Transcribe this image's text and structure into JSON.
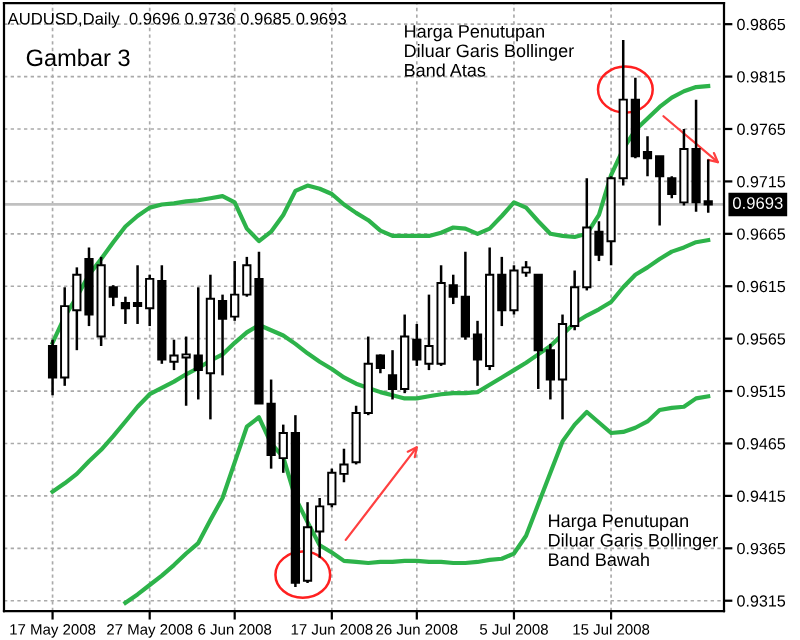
{
  "chart_data": {
    "type": "candlestick",
    "title": "AUDUSD,Daily  0.9696 0.9736 0.9685 0.9693",
    "subtitle": "Gambar 3",
    "annotations": [
      "Harga Penutupan\nDiluar Garis Bollinger\nBand Atas",
      "Harga Penutupan\nDiluar Garis Bollinger\nBand Bawah"
    ],
    "categories": [
      "17 May 2008",
      null,
      null,
      null,
      null,
      null,
      null,
      null,
      "27 May 2008",
      null,
      null,
      null,
      null,
      null,
      null,
      "6 Jun 2008",
      null,
      null,
      null,
      null,
      null,
      null,
      null,
      "17 Jun 2008",
      null,
      null,
      null,
      null,
      null,
      null,
      "26 Jun 2008",
      null,
      null,
      null,
      null,
      null,
      null,
      null,
      "5 Jul 2008",
      null,
      null,
      null,
      null,
      null,
      null,
      null,
      "15 Jul 2008",
      null,
      null,
      null,
      null,
      null,
      null,
      null,
      null
    ],
    "ohlc": [
      [
        0.9558,
        0.9564,
        0.9511,
        0.9528
      ],
      [
        0.9528,
        0.9614,
        0.952,
        0.9596
      ],
      [
        0.9592,
        0.9633,
        0.9554,
        0.9626
      ],
      [
        0.9641,
        0.9652,
        0.9577,
        0.9588
      ],
      [
        0.9567,
        0.9643,
        0.9558,
        0.9635
      ],
      [
        0.9614,
        0.9616,
        0.9596,
        0.9605
      ],
      [
        0.9599,
        0.9605,
        0.9579,
        0.9594
      ],
      [
        0.9599,
        0.9635,
        0.9579,
        0.9596
      ],
      [
        0.9594,
        0.9626,
        0.9577,
        0.9622
      ],
      [
        0.962,
        0.9635,
        0.9541,
        0.9545
      ],
      [
        0.9543,
        0.9564,
        0.9535,
        0.9549
      ],
      [
        0.9547,
        0.9567,
        0.9501,
        0.955
      ],
      [
        0.9549,
        0.9614,
        0.9507,
        0.9535
      ],
      [
        0.9532,
        0.9626,
        0.9488,
        0.9603
      ],
      [
        0.9601,
        0.9607,
        0.953,
        0.9584
      ],
      [
        0.9586,
        0.9639,
        0.9582,
        0.9607
      ],
      [
        0.9607,
        0.9643,
        0.9605,
        0.9635
      ],
      [
        0.9622,
        0.9648,
        0.9503,
        0.9503
      ],
      [
        0.9503,
        0.9526,
        0.9441,
        0.9454
      ],
      [
        0.9451,
        0.9483,
        0.9437,
        0.9475
      ],
      [
        0.9475,
        0.9492,
        0.9328,
        0.9332
      ],
      [
        0.9334,
        0.9409,
        0.9332,
        0.9385
      ],
      [
        0.9381,
        0.9413,
        0.9356,
        0.9405
      ],
      [
        0.9407,
        0.9441,
        0.9404,
        0.9437
      ],
      [
        0.9436,
        0.946,
        0.9428,
        0.9445
      ],
      [
        0.9447,
        0.9501,
        0.9445,
        0.9494
      ],
      [
        0.9494,
        0.9567,
        0.9492,
        0.9541
      ],
      [
        0.9549,
        0.955,
        0.9532,
        0.9537
      ],
      [
        0.953,
        0.9554,
        0.9507,
        0.9517
      ],
      [
        0.9517,
        0.9588,
        0.9513,
        0.9567
      ],
      [
        0.9564,
        0.9579,
        0.9539,
        0.9545
      ],
      [
        0.9541,
        0.9607,
        0.9535,
        0.9558
      ],
      [
        0.9541,
        0.9635,
        0.9539,
        0.9618
      ],
      [
        0.9616,
        0.9626,
        0.9598,
        0.9605
      ],
      [
        0.9605,
        0.9648,
        0.9564,
        0.9567
      ],
      [
        0.9569,
        0.9582,
        0.952,
        0.9545
      ],
      [
        0.9539,
        0.9652,
        0.9535,
        0.9626
      ],
      [
        0.9626,
        0.9643,
        0.9577,
        0.9592
      ],
      [
        0.9592,
        0.9635,
        0.9588,
        0.963
      ],
      [
        0.9628,
        0.9639,
        0.9624,
        0.9633
      ],
      [
        0.9626,
        0.9626,
        0.9517,
        0.9554
      ],
      [
        0.9554,
        0.956,
        0.9507,
        0.9526
      ],
      [
        0.9526,
        0.9588,
        0.9488,
        0.9579
      ],
      [
        0.9577,
        0.963,
        0.9573,
        0.9614
      ],
      [
        0.9614,
        0.9718,
        0.9611,
        0.9671
      ],
      [
        0.9667,
        0.9677,
        0.9639,
        0.9645
      ],
      [
        0.9658,
        0.972,
        0.9635,
        0.9718
      ],
      [
        0.9718,
        0.985,
        0.9711,
        0.9793
      ],
      [
        0.9793,
        0.9814,
        0.9737,
        0.9739
      ],
      [
        0.9743,
        0.9758,
        0.972,
        0.9737
      ],
      [
        0.9739,
        0.9739,
        0.9673,
        0.972
      ],
      [
        0.9718,
        0.972,
        0.9699,
        0.9703
      ],
      [
        0.9695,
        0.9765,
        0.9692,
        0.9746
      ],
      [
        0.9746,
        0.9793,
        0.9686,
        0.9695
      ],
      [
        0.9696,
        0.9736,
        0.9685,
        0.9693
      ]
    ],
    "series": [
      {
        "type": "line",
        "color": "#2db34a",
        "values": [
          0.9561,
          0.9586,
          0.9605,
          0.9626,
          0.9641,
          0.9657,
          0.9672,
          0.9682,
          0.969,
          0.9693,
          0.9694,
          0.9696,
          0.9697,
          0.9699,
          0.9701,
          0.9695,
          0.967,
          0.9658,
          0.9667,
          0.9683,
          0.9706,
          0.9711,
          0.9708,
          0.9703,
          0.9693,
          0.9685,
          0.9678,
          0.9668,
          0.9663,
          0.9663,
          0.9663,
          0.9663,
          0.9666,
          0.9671,
          0.967,
          0.9665,
          0.967,
          0.9682,
          0.9695,
          0.969,
          0.9677,
          0.9665,
          0.9663,
          0.9662,
          0.9665,
          0.9683,
          0.9721,
          0.9746,
          0.9764,
          0.9775,
          0.9786,
          0.9795,
          0.9801,
          0.9805,
          0.9806
        ]
      },
      {
        "type": "line",
        "color": "#2db34a",
        "values": [
          0.9419,
          0.9427,
          0.9436,
          0.9448,
          0.9459,
          0.9472,
          0.9486,
          0.95,
          0.9512,
          0.9518,
          0.9524,
          0.9531,
          0.9537,
          0.9544,
          0.955,
          0.9561,
          0.9571,
          0.9578,
          0.9573,
          0.9568,
          0.956,
          0.9551,
          0.9543,
          0.9536,
          0.9528,
          0.9522,
          0.9518,
          0.9514,
          0.9511,
          0.9508,
          0.9508,
          0.951,
          0.9512,
          0.9513,
          0.9513,
          0.9514,
          0.9521,
          0.9528,
          0.9535,
          0.9542,
          0.955,
          0.9558,
          0.9569,
          0.958,
          0.9587,
          0.9593,
          0.96,
          0.9614,
          0.9626,
          0.9633,
          0.9641,
          0.9648,
          0.9652,
          0.9657,
          0.9659
        ]
      },
      {
        "type": "line",
        "color": "#2db34a",
        "values": [
          null,
          null,
          null,
          null,
          null,
          null,
          0.9313,
          0.9321,
          0.933,
          0.9339,
          0.9349,
          0.936,
          0.937,
          0.9392,
          0.9413,
          0.9447,
          0.9481,
          0.949,
          0.9465,
          0.9452,
          0.9413,
          0.939,
          0.9368,
          0.9361,
          0.9353,
          0.9352,
          0.9351,
          0.9352,
          0.9352,
          0.9353,
          0.9353,
          0.9352,
          0.9352,
          0.9351,
          0.9351,
          0.9352,
          0.9354,
          0.9355,
          0.936,
          0.9377,
          0.9407,
          0.9437,
          0.9467,
          0.9483,
          0.9495,
          0.9485,
          0.9475,
          0.9476,
          0.948,
          0.9486,
          0.9497,
          0.9499,
          0.95,
          0.9508,
          0.951
        ]
      }
    ],
    "ylim": [
      0.9305,
      0.9885
    ],
    "yticks": [
      {
        "value": 0.9315,
        "label": "0.9315"
      },
      {
        "value": 0.9365,
        "label": "0.9365"
      },
      {
        "value": 0.9415,
        "label": "0.9415"
      },
      {
        "value": 0.9465,
        "label": "0.9465"
      },
      {
        "value": 0.9515,
        "label": "0.9515"
      },
      {
        "value": 0.9565,
        "label": "0.9565"
      },
      {
        "value": 0.9615,
        "label": "0.9615"
      },
      {
        "value": 0.9665,
        "label": "0.9665"
      },
      {
        "value": 0.9715,
        "label": "0.9715"
      },
      {
        "value": 0.9765,
        "label": "0.9765"
      },
      {
        "value": 0.9815,
        "label": "0.9815"
      },
      {
        "value": 0.9865,
        "label": "0.9865"
      }
    ],
    "ref_lines": [
      {
        "axis": "y",
        "value": 0.9693,
        "label": "0.9693",
        "color": "#c0c0c0"
      }
    ],
    "grid": true,
    "legend": false
  }
}
